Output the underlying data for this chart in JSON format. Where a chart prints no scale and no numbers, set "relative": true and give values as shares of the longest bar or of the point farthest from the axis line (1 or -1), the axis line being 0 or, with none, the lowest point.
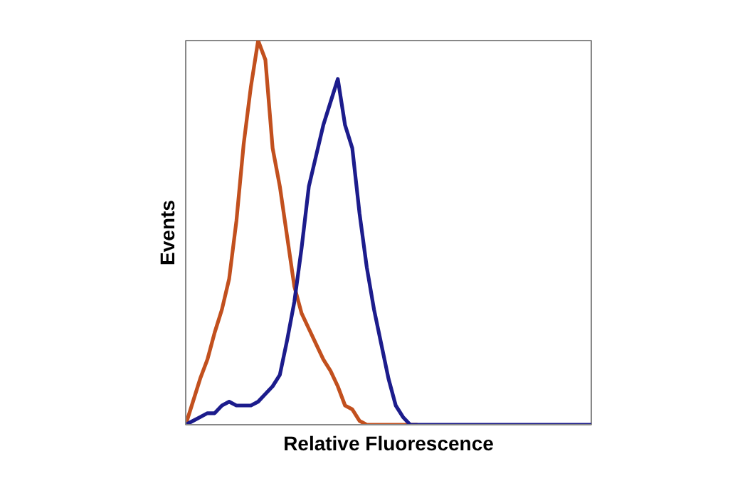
{
  "chart_data": {
    "type": "line",
    "xlabel": "Relative Fluorescence",
    "ylabel": "Events",
    "relative": true,
    "line_style": "solid",
    "categories": [
      null,
      null,
      null,
      null,
      null,
      null,
      null,
      null,
      null,
      null,
      null,
      null,
      null,
      null,
      null,
      null,
      null,
      null,
      null,
      null,
      null,
      null,
      null,
      null,
      null,
      null,
      null,
      null,
      null,
      null,
      null,
      null,
      null,
      null,
      null,
      null,
      null,
      null,
      null,
      null,
      null,
      null,
      null,
      null,
      null,
      null,
      null,
      null,
      null,
      null,
      null,
      null,
      null,
      null,
      null,
      null,
      null
    ],
    "series": [
      {
        "color": "#c2501e",
        "values": [
          0,
          0.06,
          0.12,
          0.17,
          0.24,
          0.3,
          0.38,
          0.53,
          0.73,
          0.88,
          1.0,
          0.95,
          0.72,
          0.62,
          0.49,
          0.36,
          0.29,
          0.25,
          0.21,
          0.17,
          0.14,
          0.1,
          0.05,
          0.04,
          0.01,
          0,
          0,
          0,
          0,
          0,
          0,
          0,
          0,
          null,
          null,
          null,
          null,
          null,
          null,
          null,
          null,
          null,
          null,
          null,
          null,
          null,
          null,
          null,
          null,
          null,
          null,
          null,
          null,
          null,
          null,
          null,
          null
        ]
      },
      {
        "color": "#1c1c8c",
        "values": [
          0,
          0.01,
          0.02,
          0.03,
          0.03,
          0.05,
          0.06,
          0.05,
          0.05,
          0.05,
          0.06,
          0.08,
          0.1,
          0.13,
          0.22,
          0.32,
          0.46,
          0.62,
          0.7,
          0.78,
          0.84,
          0.9,
          0.78,
          0.72,
          0.55,
          0.41,
          0.3,
          0.21,
          0.12,
          0.05,
          0.02,
          0,
          0,
          0,
          0,
          0,
          0,
          0,
          0,
          0,
          0,
          0,
          0,
          0,
          0,
          0,
          0,
          0,
          0,
          0,
          0,
          0,
          0,
          0,
          0,
          0,
          0
        ]
      }
    ]
  }
}
